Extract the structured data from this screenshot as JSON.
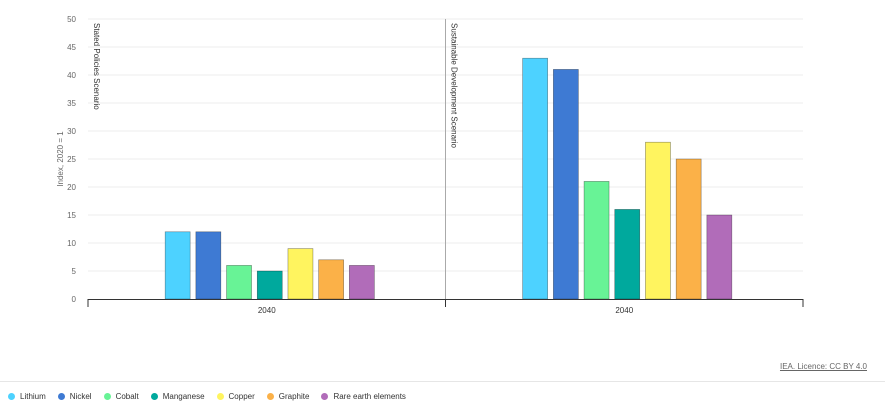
{
  "chart_data": {
    "type": "bar",
    "ylabel": "Index, 2020 = 1",
    "ylim": [
      0,
      50
    ],
    "yticks": [
      0,
      5,
      10,
      15,
      20,
      25,
      30,
      35,
      40,
      45,
      50
    ],
    "grid": true,
    "legend_position": "bottom-left",
    "panels": [
      {
        "label": "Stated Policies Scenario",
        "category": "2040"
      },
      {
        "label": "Sustainable Development Scenario",
        "category": "2040"
      }
    ],
    "series": [
      {
        "name": "Lithium",
        "color": "#4dd2ff",
        "values": [
          12,
          43
        ]
      },
      {
        "name": "Nickel",
        "color": "#3e7ad3",
        "values": [
          12,
          41
        ]
      },
      {
        "name": "Cobalt",
        "color": "#68f396",
        "values": [
          6,
          21
        ]
      },
      {
        "name": "Manganese",
        "color": "#00a99d",
        "values": [
          5,
          16
        ]
      },
      {
        "name": "Copper",
        "color": "#fff45f",
        "values": [
          9,
          28
        ]
      },
      {
        "name": "Graphite",
        "color": "#fbb148",
        "values": [
          7,
          25
        ]
      },
      {
        "name": "Rare earth elements",
        "color": "#b16cb9",
        "values": [
          6,
          15
        ]
      }
    ]
  },
  "credit": "IEA. Licence: CC BY 4.0"
}
